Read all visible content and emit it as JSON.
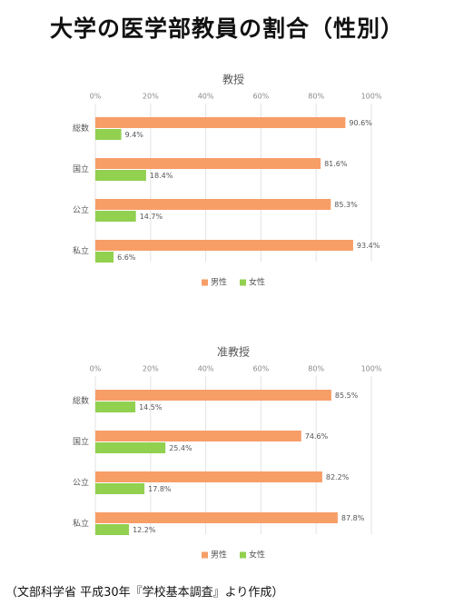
{
  "title": "大学の医学部教員の割合（性別）",
  "source": "（文部科学省 平成30年『学校基本調査』より作成）",
  "chart_data": [
    {
      "type": "bar",
      "orientation": "horizontal",
      "title": "教授",
      "categories": [
        "総数",
        "国立",
        "公立",
        "私立"
      ],
      "series": [
        {
          "name": "男性",
          "color": "#F79E67",
          "values": [
            90.6,
            81.6,
            85.3,
            93.4
          ],
          "labels": [
            "90.6%",
            "81.6%",
            "85.3%",
            "93.4%"
          ]
        },
        {
          "name": "女性",
          "color": "#92D050",
          "values": [
            9.4,
            18.4,
            14.7,
            6.6
          ],
          "labels": [
            "9.4%",
            "18.4%",
            "14.7%",
            "6.6%"
          ]
        }
      ],
      "x_ticks": [
        "0%",
        "20%",
        "40%",
        "60%",
        "80%",
        "100%"
      ],
      "xlim": [
        0,
        100
      ],
      "axis_position": "top",
      "grid": true,
      "legend_position": "bottom"
    },
    {
      "type": "bar",
      "orientation": "horizontal",
      "title": "准教授",
      "categories": [
        "総数",
        "国立",
        "公立",
        "私立"
      ],
      "series": [
        {
          "name": "男性",
          "color": "#F79E67",
          "values": [
            85.5,
            74.6,
            82.2,
            87.8
          ],
          "labels": [
            "85.5%",
            "74.6%",
            "82.2%",
            "87.8%"
          ]
        },
        {
          "name": "女性",
          "color": "#92D050",
          "values": [
            14.5,
            25.4,
            17.8,
            12.2
          ],
          "labels": [
            "14.5%",
            "25.4%",
            "17.8%",
            "12.2%"
          ]
        }
      ],
      "x_ticks": [
        "0%",
        "20%",
        "40%",
        "60%",
        "80%",
        "100%"
      ],
      "xlim": [
        0,
        100
      ],
      "axis_position": "top",
      "grid": true,
      "legend_position": "bottom"
    }
  ]
}
